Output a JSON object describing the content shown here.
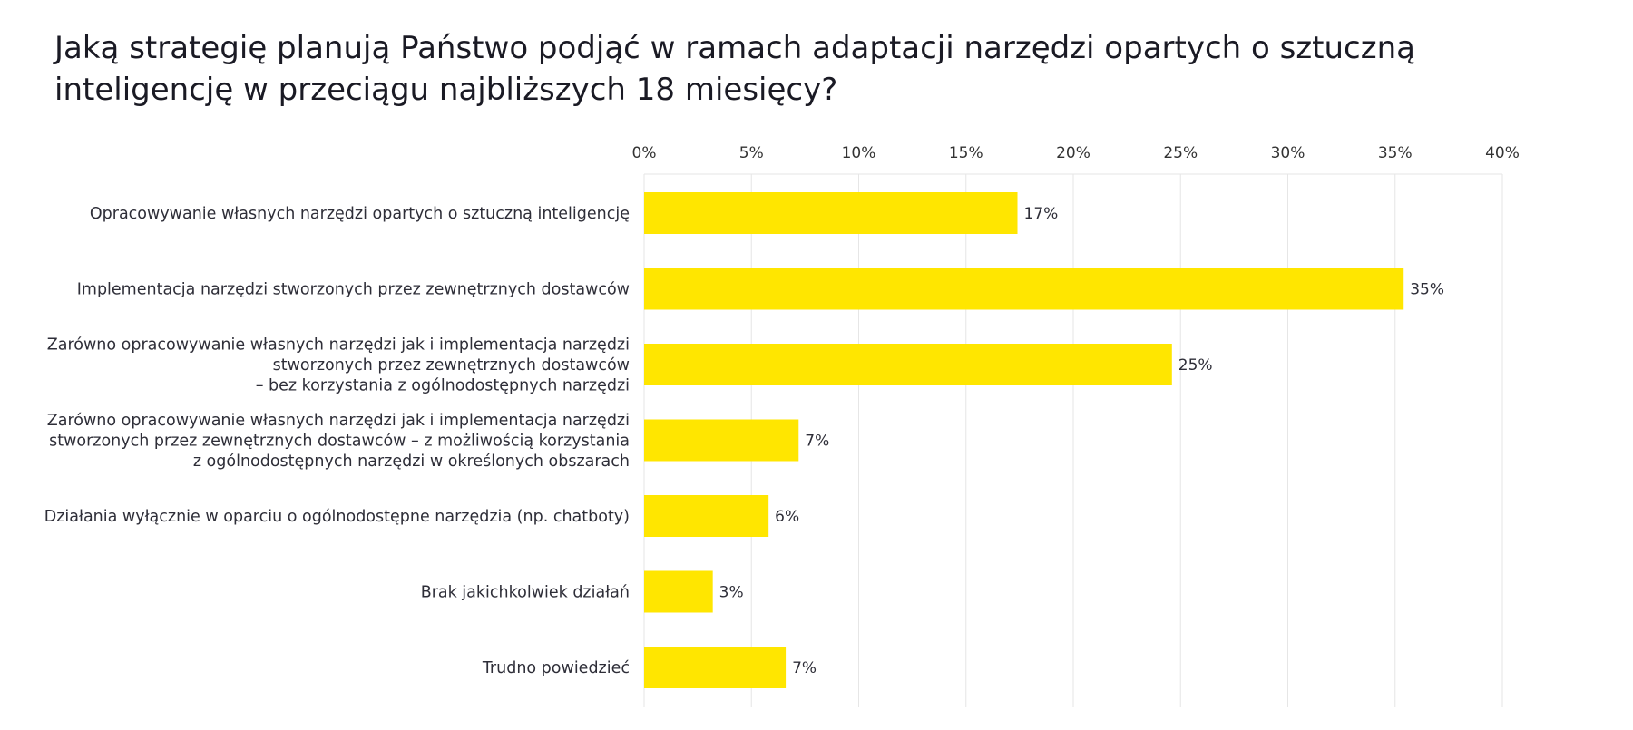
{
  "chart_data": {
    "type": "bar",
    "orientation": "horizontal",
    "title": "Jaką strategię planują Państwo podjąć w ramach adaptacji narzędzi opartych o sztuczną inteligencję w przeciągu najbliższych 18 miesięcy?",
    "title_lines": [
      "Jaką strategię planują Państwo podjąć w ramach adaptacji narzędzi opartych o sztuczną",
      "inteligencję w przeciągu najbliższych 18 miesięcy?"
    ],
    "categories": [
      [
        "Opracowywanie własnych narzędzi opartych o sztuczną inteligencję"
      ],
      [
        "Implementacja narzędzi stworzonych przez zewnętrznych dostawców"
      ],
      [
        "Zarówno opracowywanie własnych narzędzi jak i implementacja narzędzi",
        "stworzonych przez zewnętrznych dostawców",
        "– bez korzystania z ogólnodostępnych narzędzi"
      ],
      [
        "Zarówno opracowywanie własnych narzędzi jak i implementacja narzędzi",
        "stworzonych przez zewnętrznych dostawców – z możliwością korzystania",
        "z ogólnodostępnych narzędzi w określonych obszarach"
      ],
      [
        "Działania wyłącznie w oparciu o ogólnodostępne narzędzia (np. chatboty)"
      ],
      [
        "Brak jakichkolwiek działań"
      ],
      [
        "Trudno powiedzieć"
      ]
    ],
    "values": [
      17.4,
      35.4,
      24.6,
      7.2,
      5.8,
      3.2,
      6.6
    ],
    "value_labels": [
      "17%",
      "35%",
      "25%",
      "7%",
      "6%",
      "3%",
      "7%"
    ],
    "xlim": [
      0,
      40
    ],
    "x_ticks": [
      0,
      5,
      10,
      15,
      20,
      25,
      30,
      35,
      40
    ],
    "x_tick_labels": [
      "0%",
      "5%",
      "10%",
      "15%",
      "20%",
      "25%",
      "30%",
      "35%",
      "40%"
    ],
    "x_axis_position": "top",
    "grid": true,
    "legend": "none",
    "bar_color": "#FFE600",
    "grid_color": "#E6E6E6",
    "text_color": "#2E2E38"
  }
}
